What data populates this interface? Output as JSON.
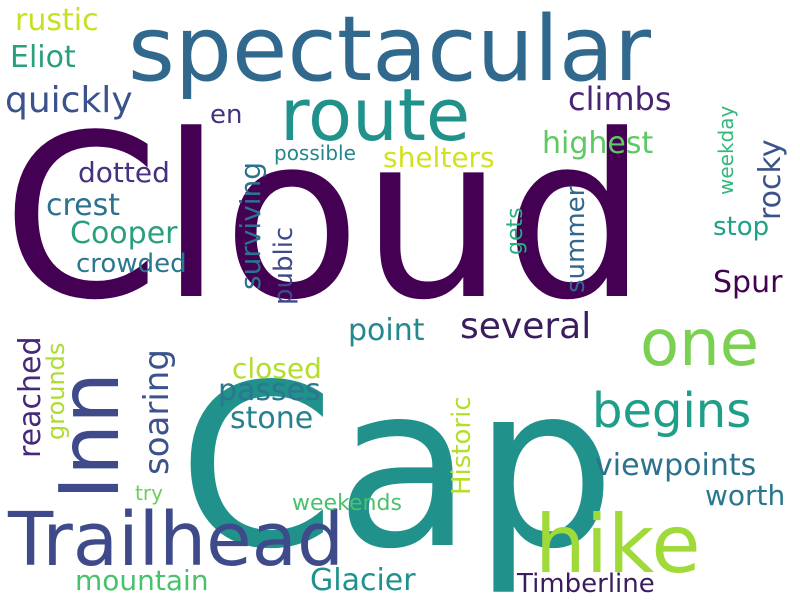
{
  "words": [
    {
      "text": "Cloud",
      "color": "#440154"
    },
    {
      "text": "Cap",
      "color": "#21918c"
    },
    {
      "text": "spectacular",
      "color": "#31688e"
    },
    {
      "text": "route",
      "color": "#21918c"
    },
    {
      "text": "hike",
      "color": "#a0da39"
    },
    {
      "text": "Trailhead",
      "color": "#3e4a89"
    },
    {
      "text": "Inn",
      "color": "#3e4a89"
    },
    {
      "text": "one",
      "color": "#7ad151"
    },
    {
      "text": "begins",
      "color": "#1f9e89"
    },
    {
      "text": "several",
      "color": "#3b1c5f"
    },
    {
      "text": "quickly",
      "color": "#3b528b"
    },
    {
      "text": "climbs",
      "color": "#482475"
    },
    {
      "text": "rustic",
      "color": "#c8e020"
    },
    {
      "text": "Eliot",
      "color": "#2a9f7f"
    },
    {
      "text": "en",
      "color": "#46337e"
    },
    {
      "text": "highest",
      "color": "#5ec962"
    },
    {
      "text": "shelters",
      "color": "#d2e21b"
    },
    {
      "text": "dotted",
      "color": "#46327e"
    },
    {
      "text": "crest",
      "color": "#2c728e"
    },
    {
      "text": "Cooper",
      "color": "#2a9f7f"
    },
    {
      "text": "crowded",
      "color": "#2a788e"
    },
    {
      "text": "possible",
      "color": "#25858e"
    },
    {
      "text": "rocky",
      "color": "#3b528b"
    },
    {
      "text": "weekday",
      "color": "#35b779"
    },
    {
      "text": "stop",
      "color": "#1fa187"
    },
    {
      "text": "Spur",
      "color": "#440154"
    },
    {
      "text": "point",
      "color": "#23898e"
    },
    {
      "text": "viewpoints",
      "color": "#2c728e"
    },
    {
      "text": "worth",
      "color": "#2a788e"
    },
    {
      "text": "passes",
      "color": "#2a788e"
    },
    {
      "text": "stone",
      "color": "#26828e"
    },
    {
      "text": "closed",
      "color": "#b5de2b"
    },
    {
      "text": "mountain",
      "color": "#4ac16d"
    },
    {
      "text": "Glacier",
      "color": "#21918c"
    },
    {
      "text": "Timberline",
      "color": "#3b1c5f"
    },
    {
      "text": "weekends",
      "color": "#4ac16d"
    },
    {
      "text": "try",
      "color": "#6ccd5a"
    },
    {
      "text": "surviving",
      "color": "#2c728e"
    },
    {
      "text": "public",
      "color": "#3e4a89"
    },
    {
      "text": "gets",
      "color": "#29af7f"
    },
    {
      "text": "summer",
      "color": "#31688e"
    },
    {
      "text": "soaring",
      "color": "#3b528b"
    },
    {
      "text": "reached",
      "color": "#482878"
    },
    {
      "text": "grounds",
      "color": "#addc30"
    },
    {
      "text": "Historic",
      "color": "#b5de2b"
    }
  ]
}
